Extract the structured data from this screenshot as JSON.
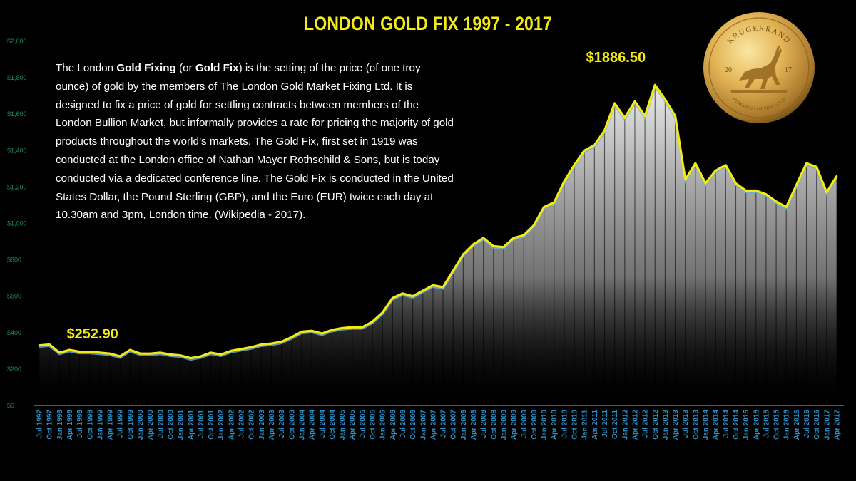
{
  "title": "LONDON GOLD FIX 1997 - 2017",
  "description": {
    "p1": "The London ",
    "b1": "Gold Fixing",
    "p2": " (or ",
    "b2": "Gold Fix",
    "p3": ") is the setting of the price (of one troy ounce) of gold by the members of The London Gold Market Fixing Ltd.  It is designed to fix a price of gold for settling contracts between members of the London Bullion Market, but informally provides a rate for pricing the majority of gold products throughout the world’s markets.  The Gold Fix, first set in 1919 was conducted at the London office of Nathan Mayer Rothschild & Sons, but is today conducted via a dedicated conference line.  The Gold Fix is conducted in the United States Dollar, the Pound Sterling (GBP), and the Euro (EUR) twice each day at 10.30am and 3pm, London time.   (Wikipedia - 2017)."
  },
  "coin": {
    "top_text": "KRUGERRAND",
    "year_left": "20",
    "year_right": "17",
    "bottom_text": "FYNGOUD 1 OZ FINE GOLD"
  },
  "colors": {
    "background": "#000000",
    "line": "#f4ea14",
    "area": "#ffffff",
    "axis": "#2a8fc4",
    "ytick": "#1f8a63"
  },
  "chart_data": {
    "type": "area",
    "categories": [
      "Jul 1997",
      "Oct 1997",
      "Jan 1998",
      "Apr 1998",
      "Jul 1998",
      "Oct 1998",
      "Jan 1999",
      "Apr 1999",
      "Jul 1999",
      "Oct 1999",
      "Jan 2000",
      "Apr 2000",
      "Jul 2000",
      "Oct 2000",
      "Jan 2001",
      "Apr 2001",
      "Jul 2001",
      "Oct 2001",
      "Jan 2002",
      "Apr 2002",
      "Jul 2002",
      "Oct 2002",
      "Jan 2003",
      "Apr 2003",
      "Jul 2003",
      "Oct 2003",
      "Jan 2004",
      "Apr 2004",
      "Jul 2004",
      "Oct 2004",
      "Jan 2005",
      "Apr 2005",
      "Jul 2005",
      "Oct 2005",
      "Jan 2006",
      "Apr 2006",
      "Jul 2006",
      "Oct 2006",
      "Jan 2007",
      "Apr 2007",
      "Jul 2007",
      "Oct 2007",
      "Jan 2008",
      "Apr 2008",
      "Jul 2008",
      "Oct 2008",
      "Jan 2009",
      "Apr 2009",
      "Jul 2009",
      "Oct 2009",
      "Jan 2010",
      "Apr 2010",
      "Jul 2010",
      "Oct 2010",
      "Jan 2011",
      "Apr 2011",
      "Jul 2011",
      "Oct 2011",
      "Jan 2012",
      "Apr 2012",
      "Jul 2012",
      "Oct 2012",
      "Jan 2013",
      "Apr 2013",
      "Jul 2013",
      "Oct 2013",
      "Jan 2014",
      "Apr 2014",
      "Jul 2014",
      "Oct 2014",
      "Jan 2015",
      "Apr 2015",
      "Jul 2015",
      "Oct 2015",
      "Jan 2016",
      "Apr 2016",
      "Jul 2016",
      "Oct 2016",
      "Jan 2017",
      "Apr 2017"
    ],
    "values": [
      330,
      335,
      290,
      305,
      295,
      295,
      290,
      285,
      270,
      305,
      285,
      285,
      290,
      280,
      275,
      260,
      270,
      290,
      280,
      300,
      310,
      320,
      335,
      340,
      350,
      375,
      405,
      410,
      395,
      415,
      425,
      430,
      430,
      460,
      510,
      590,
      615,
      600,
      630,
      660,
      650,
      740,
      830,
      885,
      920,
      875,
      870,
      920,
      935,
      990,
      1090,
      1115,
      1230,
      1320,
      1400,
      1430,
      1510,
      1660,
      1580,
      1670,
      1590,
      1760,
      1680,
      1590,
      1240,
      1330,
      1220,
      1290,
      1320,
      1220,
      1180,
      1180,
      1160,
      1120,
      1090,
      1210,
      1330,
      1310,
      1170,
      1260
    ],
    "ylim": [
      0,
      2000
    ],
    "yticks": [
      "$0",
      "$200",
      "$400",
      "$600",
      "$800",
      "$1,000",
      "$1,200",
      "$1,400",
      "$1,600",
      "$1,800",
      "$2,000"
    ],
    "ytick_values": [
      0,
      200,
      400,
      600,
      800,
      1000,
      1200,
      1400,
      1600,
      1800,
      2000
    ],
    "annotations": [
      {
        "text": "$252.90",
        "category": "Apr 1998"
      },
      {
        "text": "$1886.50",
        "category": "Oct 2011"
      }
    ],
    "title": "LONDON GOLD FIX 1997 - 2017",
    "xlabel": "",
    "ylabel": "",
    "grid": false
  }
}
